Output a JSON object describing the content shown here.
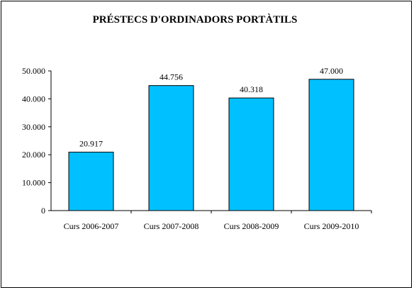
{
  "chart_data": {
    "type": "bar",
    "title": "PRÉSTECS D'ORDINADORS PORTÀTILS",
    "categories": [
      "Curs 2006-2007",
      "Curs 2007-2008",
      "Curs 2008-2009",
      "Curs 2009-2010"
    ],
    "values": [
      20917,
      44756,
      40318,
      47000
    ],
    "data_labels": [
      "20.917",
      "44.756",
      "40.318",
      "47.000"
    ],
    "y_ticks": [
      0,
      10000,
      20000,
      30000,
      40000,
      50000
    ],
    "y_tick_labels": [
      "0",
      "10.000",
      "20.000",
      "30.000",
      "40.000",
      "50.000"
    ],
    "ylim": [
      0,
      50000
    ],
    "grid": false,
    "legend": "none",
    "bar_color": "#00C0FF",
    "bar_stroke": "#000000"
  }
}
